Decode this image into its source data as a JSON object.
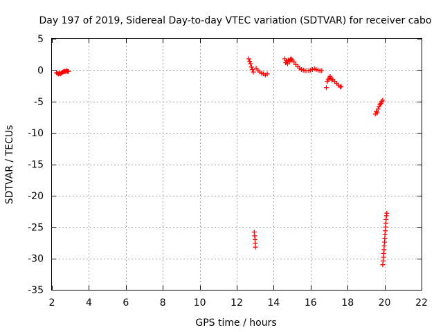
{
  "chart_data": {
    "type": "scatter",
    "title": "Day 197 of 2019, Sidereal Day-to-day VTEC variation (SDTVAR) for receiver cabo",
    "xlabel": "GPS time / hours",
    "ylabel": "SDTVAR / TECUs",
    "xlim": [
      2,
      22
    ],
    "ylim": [
      -35,
      5
    ],
    "xticks": [
      2,
      4,
      6,
      8,
      10,
      12,
      14,
      16,
      18,
      20,
      22
    ],
    "yticks": [
      5,
      0,
      -5,
      -10,
      -15,
      -20,
      -25,
      -30,
      -35
    ],
    "xtick_labels": [
      "2",
      "4",
      "6",
      "8",
      "10",
      "12",
      "14",
      "16",
      "18",
      "20",
      "22"
    ],
    "ytick_labels": [
      "5",
      "0",
      "-5",
      "-10",
      "-15",
      "-20",
      "-25",
      "-30",
      "-35"
    ],
    "grid": true,
    "marker": "+",
    "color": "#ff0000",
    "series": [
      {
        "name": "SDTVAR",
        "segments": [
          [
            [
              2.25,
              -0.4
            ],
            [
              2.3,
              -0.5
            ],
            [
              2.35,
              -0.6
            ],
            [
              2.4,
              -0.5
            ],
            [
              2.45,
              -0.6
            ],
            [
              2.5,
              -0.5
            ],
            [
              2.55,
              -0.4
            ],
            [
              2.6,
              -0.3
            ],
            [
              2.65,
              -0.2
            ],
            [
              2.7,
              -0.2
            ],
            [
              2.75,
              -0.2
            ],
            [
              2.8,
              -0.1
            ],
            [
              2.85,
              -0.2
            ],
            [
              2.9,
              -0.2
            ]
          ],
          [
            [
              12.65,
              1.8
            ],
            [
              12.7,
              1.4
            ],
            [
              12.75,
              1.0
            ],
            [
              12.8,
              0.5
            ],
            [
              12.85,
              0.1
            ],
            [
              12.9,
              -0.3
            ]
          ],
          [
            [
              13.05,
              0.3
            ],
            [
              13.15,
              0.0
            ],
            [
              13.25,
              -0.3
            ],
            [
              13.35,
              -0.5
            ],
            [
              13.45,
              -0.6
            ],
            [
              13.55,
              -0.8
            ],
            [
              13.65,
              -0.6
            ]
          ],
          [
            [
              12.95,
              -25.8
            ],
            [
              12.97,
              -26.4
            ],
            [
              12.99,
              -27.0
            ],
            [
              13.0,
              -27.6
            ],
            [
              13.01,
              -28.2
            ]
          ],
          [
            [
              14.6,
              1.8
            ],
            [
              14.65,
              1.2
            ],
            [
              14.7,
              1.5
            ],
            [
              14.75,
              1.0
            ],
            [
              14.8,
              1.6
            ],
            [
              14.85,
              1.3
            ],
            [
              14.9,
              1.7
            ],
            [
              14.95,
              1.8
            ],
            [
              15.0,
              1.6
            ],
            [
              15.1,
              1.3
            ],
            [
              15.2,
              0.9
            ],
            [
              15.3,
              0.6
            ],
            [
              15.4,
              0.3
            ],
            [
              15.5,
              0.1
            ],
            [
              15.6,
              0.0
            ],
            [
              15.7,
              -0.1
            ],
            [
              15.8,
              -0.1
            ],
            [
              15.9,
              -0.1
            ],
            [
              16.0,
              0.0
            ],
            [
              16.1,
              0.1
            ],
            [
              16.2,
              0.2
            ],
            [
              16.3,
              0.1
            ],
            [
              16.4,
              0.0
            ],
            [
              16.5,
              -0.1
            ],
            [
              16.6,
              -0.1
            ]
          ],
          [
            [
              16.85,
              -2.8
            ],
            [
              16.9,
              -1.8
            ],
            [
              16.95,
              -1.5
            ],
            [
              17.0,
              -1.3
            ],
            [
              17.05,
              -1.0
            ],
            [
              17.1,
              -1.3
            ],
            [
              17.15,
              -1.6
            ],
            [
              17.2,
              -1.5
            ],
            [
              17.3,
              -1.8
            ],
            [
              17.4,
              -2.1
            ],
            [
              17.5,
              -2.4
            ],
            [
              17.6,
              -2.7
            ],
            [
              17.65,
              -2.6
            ]
          ],
          [
            [
              19.5,
              -7.0
            ],
            [
              19.55,
              -6.6
            ],
            [
              19.6,
              -6.8
            ],
            [
              19.65,
              -6.2
            ],
            [
              19.7,
              -5.8
            ],
            [
              19.75,
              -5.5
            ],
            [
              19.8,
              -5.3
            ],
            [
              19.85,
              -5.0
            ],
            [
              19.9,
              -4.8
            ]
          ],
          [
            [
              19.9,
              -31.0
            ],
            [
              19.92,
              -30.4
            ],
            [
              19.94,
              -29.8
            ],
            [
              19.95,
              -29.2
            ],
            [
              19.97,
              -28.6
            ],
            [
              19.98,
              -28.0
            ],
            [
              20.0,
              -27.4
            ],
            [
              20.01,
              -26.8
            ],
            [
              20.02,
              -26.2
            ],
            [
              20.04,
              -25.6
            ],
            [
              20.05,
              -25.0
            ],
            [
              20.07,
              -24.4
            ],
            [
              20.08,
              -23.8
            ],
            [
              20.1,
              -23.2
            ],
            [
              20.12,
              -22.8
            ]
          ]
        ]
      }
    ]
  }
}
